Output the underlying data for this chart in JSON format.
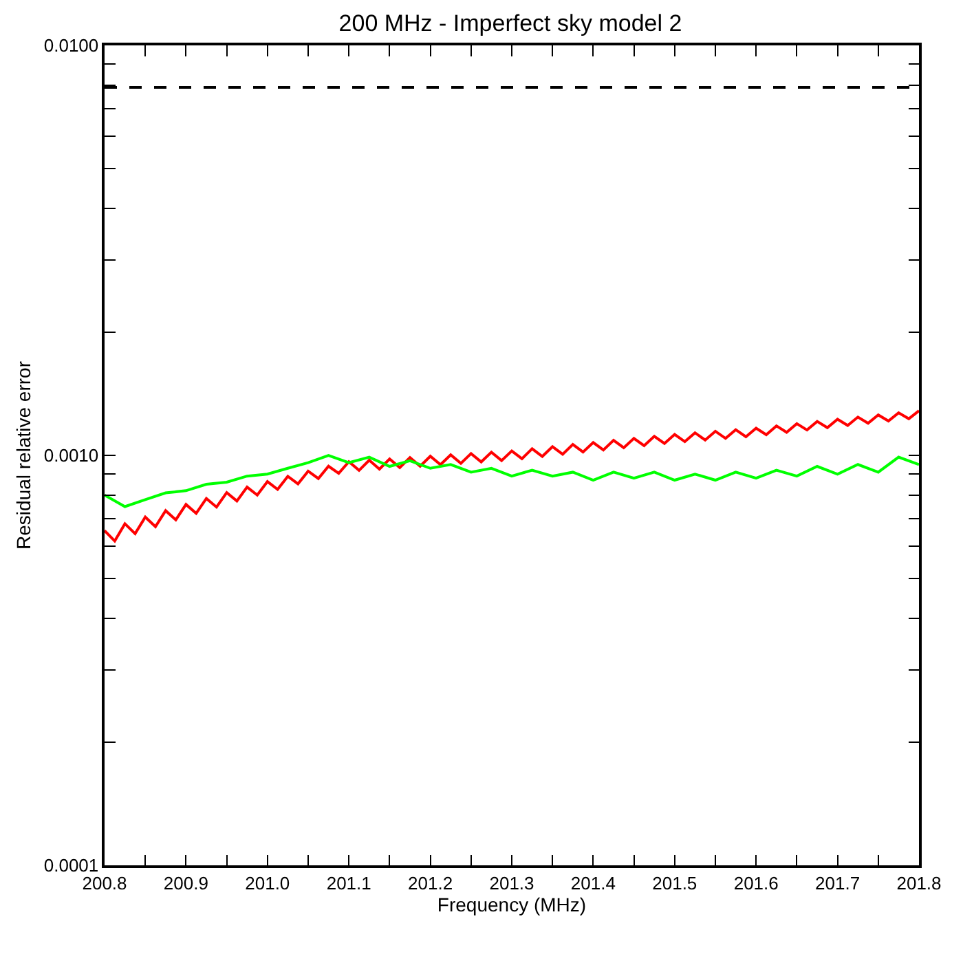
{
  "chart_data": {
    "type": "line",
    "title": "200 MHz - Imperfect sky model 2",
    "xlabel": "Frequency (MHz)",
    "ylabel": "Residual relative error",
    "log": "y",
    "marker": "none",
    "line_style": "solid",
    "xlim": [
      200.8,
      201.8
    ],
    "ylim": [
      0.0001,
      0.01
    ],
    "xticks": [
      200.8,
      {
        "value": 200.85,
        "label": null
      },
      200.9,
      {
        "value": 200.95,
        "label": null
      },
      {
        "value": 201.0,
        "label": "201.0"
      },
      {
        "value": 201.05,
        "label": null
      },
      201.1,
      {
        "value": 201.15,
        "label": null
      },
      201.2,
      {
        "value": 201.25,
        "label": null
      },
      201.3,
      {
        "value": 201.35,
        "label": null
      },
      201.4,
      {
        "value": 201.45,
        "label": null
      },
      201.5,
      {
        "value": 201.55,
        "label": null
      },
      201.6,
      {
        "value": 201.65,
        "label": null
      },
      201.7,
      {
        "value": 201.75,
        "label": null
      },
      201.8
    ],
    "yticks": [
      0.0001,
      {
        "value": 0.0002,
        "label": null
      },
      {
        "value": 0.0003,
        "label": null
      },
      {
        "value": 0.0004,
        "label": null
      },
      {
        "value": 0.0005,
        "label": null
      },
      {
        "value": 0.0006,
        "label": null
      },
      {
        "value": 0.0007,
        "label": null
      },
      {
        "value": 0.0008,
        "label": null
      },
      {
        "value": 0.0009,
        "label": null
      },
      {
        "value": 0.001,
        "label": "0.0010"
      },
      {
        "value": 0.002,
        "label": null
      },
      {
        "value": 0.003,
        "label": null
      },
      {
        "value": 0.004,
        "label": null
      },
      {
        "value": 0.005,
        "label": null
      },
      {
        "value": 0.006,
        "label": null
      },
      {
        "value": 0.007,
        "label": null
      },
      {
        "value": 0.008,
        "label": null
      },
      {
        "value": 0.009,
        "label": null
      },
      {
        "value": 0.01,
        "label": "0.0100"
      }
    ],
    "ref_lines": [
      {
        "axis": "y",
        "value": 0.0079,
        "label": null,
        "color": "#000000",
        "line_style": "dashed"
      }
    ],
    "series": [
      {
        "color": "#ff0000",
        "x": [
          200.8,
          200.8125,
          200.825,
          200.8375,
          200.85,
          200.8625,
          200.875,
          200.8875,
          200.9,
          200.9125,
          200.925,
          200.9375,
          200.95,
          200.9625,
          200.975,
          200.9875,
          201.0,
          201.0125,
          201.025,
          201.0375,
          201.05,
          201.0625,
          201.075,
          201.0875,
          201.1,
          201.1125,
          201.125,
          201.1375,
          201.15,
          201.1625,
          201.175,
          201.1875,
          201.2,
          201.2125,
          201.225,
          201.2375,
          201.25,
          201.2625,
          201.275,
          201.2875,
          201.3,
          201.3125,
          201.325,
          201.3375,
          201.35,
          201.3625,
          201.375,
          201.3875,
          201.4,
          201.4125,
          201.425,
          201.4375,
          201.45,
          201.4625,
          201.475,
          201.4875,
          201.5,
          201.5125,
          201.525,
          201.5375,
          201.55,
          201.5625,
          201.575,
          201.5875,
          201.6,
          201.6125,
          201.625,
          201.6375,
          201.65,
          201.6625,
          201.675,
          201.6875,
          201.7,
          201.7125,
          201.725,
          201.7375,
          201.75,
          201.7625,
          201.775,
          201.7875,
          201.8
        ],
        "values": [
          0.000655,
          0.000618,
          0.000681,
          0.000644,
          0.000707,
          0.00067,
          0.000733,
          0.000696,
          0.000759,
          0.000722,
          0.000785,
          0.000748,
          0.000811,
          0.000774,
          0.000837,
          0.0008,
          0.000863,
          0.000826,
          0.000889,
          0.000852,
          0.000915,
          0.000878,
          0.000941,
          0.000904,
          0.000965,
          0.000919,
          0.000973,
          0.000926,
          0.00098,
          0.000934,
          0.000988,
          0.000941,
          0.000995,
          0.000949,
          0.001003,
          0.000956,
          0.00101,
          0.000964,
          0.001018,
          0.000971,
          0.001025,
          0.000981,
          0.001038,
          0.000994,
          0.00105,
          0.001006,
          0.001063,
          0.001019,
          0.001075,
          0.001031,
          0.001088,
          0.001044,
          0.0011,
          0.001056,
          0.001113,
          0.001069,
          0.001125,
          0.00108,
          0.001135,
          0.00109,
          0.001145,
          0.0011,
          0.001155,
          0.00111,
          0.001165,
          0.001123,
          0.00118,
          0.001138,
          0.001195,
          0.001153,
          0.00121,
          0.001168,
          0.001225,
          0.001183,
          0.00124,
          0.001198,
          0.001255,
          0.001213,
          0.00127,
          0.001228,
          0.001285
        ]
      },
      {
        "color": "#00ff00",
        "x": [
          200.8,
          200.825,
          200.85,
          200.875,
          200.9,
          200.925,
          200.95,
          200.975,
          201.0,
          201.025,
          201.05,
          201.075,
          201.1,
          201.125,
          201.15,
          201.175,
          201.2,
          201.225,
          201.25,
          201.275,
          201.3,
          201.325,
          201.35,
          201.375,
          201.4,
          201.425,
          201.45,
          201.475,
          201.5,
          201.525,
          201.55,
          201.575,
          201.6,
          201.625,
          201.65,
          201.675,
          201.7,
          201.725,
          201.75,
          201.775,
          201.8
        ],
        "values": [
          0.0008,
          0.00075,
          0.00078,
          0.00081,
          0.00082,
          0.00085,
          0.00086,
          0.00089,
          0.0009,
          0.00093,
          0.00096,
          0.001,
          0.00096,
          0.00099,
          0.00094,
          0.00097,
          0.00093,
          0.00095,
          0.00091,
          0.00093,
          0.00089,
          0.00092,
          0.00089,
          0.00091,
          0.00087,
          0.00091,
          0.00088,
          0.00091,
          0.00087,
          0.0009,
          0.00087,
          0.00091,
          0.00088,
          0.00092,
          0.00089,
          0.00094,
          0.0009,
          0.00095,
          0.00091,
          0.00099,
          0.00095
        ]
      }
    ]
  }
}
